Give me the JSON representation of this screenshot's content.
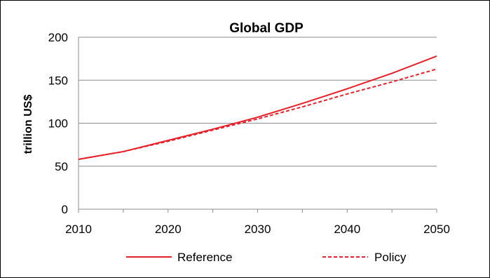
{
  "chart_data": {
    "type": "line",
    "title": "Global GDP",
    "xlabel": "",
    "ylabel": "trillion US$",
    "x": [
      2010,
      2015,
      2020,
      2025,
      2030,
      2035,
      2040,
      2045,
      2050
    ],
    "xlim": [
      2010,
      2050
    ],
    "ylim": [
      0,
      200
    ],
    "x_ticks": [
      "2010",
      "2020",
      "2030",
      "2040",
      "2050"
    ],
    "y_ticks": [
      "0",
      "50",
      "100",
      "150",
      "200"
    ],
    "grid": "horizontal",
    "legend_position": "bottom",
    "series": [
      {
        "name": "Reference",
        "style": "solid",
        "color": "#e8202a",
        "values": [
          58,
          67,
          80,
          93,
          107,
          123,
          140,
          158,
          178
        ]
      },
      {
        "name": "Policy",
        "style": "dashed",
        "color": "#e8202a",
        "values": [
          58,
          67,
          79,
          92,
          105,
          119,
          134,
          148,
          163
        ]
      }
    ]
  }
}
